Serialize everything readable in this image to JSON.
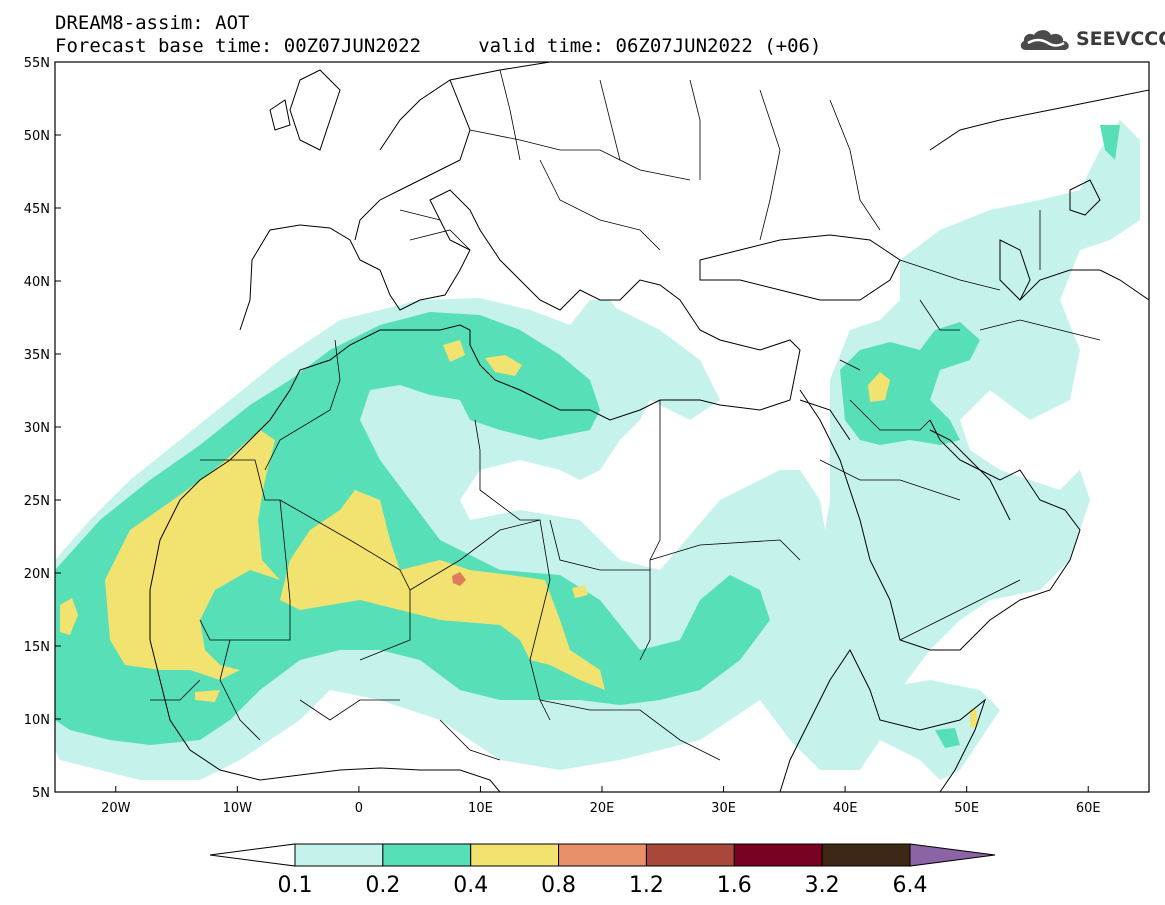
{
  "title_line1": "DREAM8-assim: AOT",
  "title_line2": "Forecast base time: 00Z07JUN2022     valid time: 06Z07JUN2022 (+06)",
  "logo_text": "SEEVCCC",
  "map": {
    "lat_labels": [
      "55N",
      "50N",
      "45N",
      "40N",
      "35N",
      "30N",
      "25N",
      "20N",
      "15N",
      "10N",
      "5N"
    ],
    "lon_labels": [
      "20W",
      "10W",
      "0",
      "10E",
      "20E",
      "30E",
      "40E",
      "50E",
      "60E"
    ],
    "lat_range": [
      5,
      55
    ],
    "lon_range": [
      -25,
      65
    ]
  },
  "colorbar": {
    "labels": [
      "0.1",
      "0.2",
      "0.4",
      "0.8",
      "1.2",
      "1.6",
      "3.2",
      "6.4"
    ],
    "colors": [
      "#ffffff",
      "#c6f2ec",
      "#57dfb8",
      "#f2e270",
      "#e8906a",
      "#a8483a",
      "#780020",
      "#3c2814",
      "#8a64a6"
    ]
  },
  "fill_colors": {
    "lt": "#c6f2ec",
    "gr": "#57dfb8",
    "yl": "#f2e270",
    "or": "#e07a5f"
  }
}
